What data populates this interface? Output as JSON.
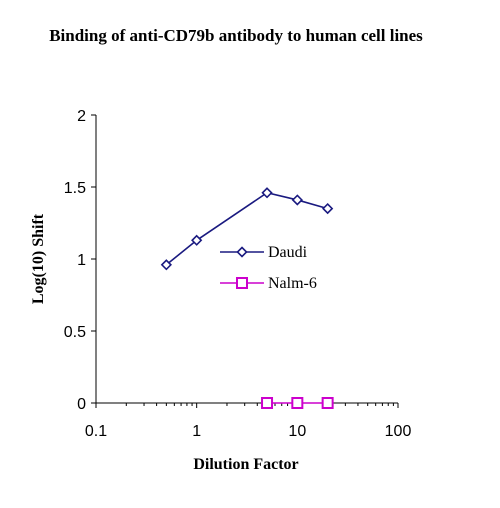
{
  "chart_data": {
    "type": "scatter",
    "title": "Binding of anti-CD79b antibody to human cell lines",
    "xlabel": "Dilution Factor",
    "ylabel": "Log(10) Shift",
    "xscale": "log",
    "xlim": [
      0.1,
      100
    ],
    "ylim": [
      0,
      2
    ],
    "xticks": [
      "0.1",
      "1",
      "10",
      "100"
    ],
    "yticks": [
      "0",
      "0.5",
      "1",
      "1.5",
      "2"
    ],
    "grid": false,
    "legend_position": "middle-right",
    "series": [
      {
        "name": "Daudi",
        "color": "#1a1a80",
        "marker": "diamond",
        "x": [
          0.5,
          1,
          5,
          10,
          20
        ],
        "y": [
          0.96,
          1.13,
          1.46,
          1.41,
          1.35
        ]
      },
      {
        "name": "Nalm-6",
        "color": "#cc00cc",
        "marker": "square",
        "x": [
          5,
          10,
          20
        ],
        "y": [
          0,
          0,
          0
        ]
      }
    ]
  }
}
